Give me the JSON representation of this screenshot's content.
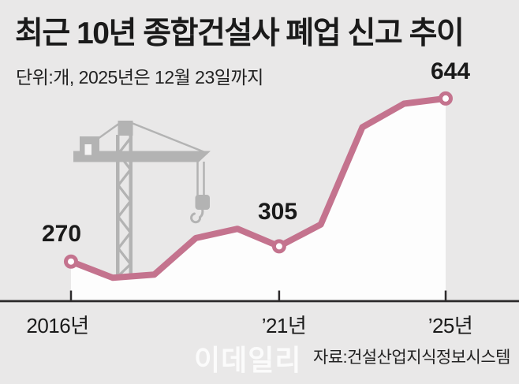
{
  "header": {
    "title": "최근 10년 종합건설사 폐업 신고 추이",
    "subtitle": "단위:개, 2025년은 12월 23일까지"
  },
  "footer": {
    "source": "자료:건설산업지식정보시스템",
    "watermark": "이데일리"
  },
  "colors": {
    "background": "#e9e8e8",
    "area_fill": "#fdfdfd",
    "line": "#c4738e",
    "marker_fill": "#ffffff",
    "crane": "#b3b3b3",
    "axis": "#2d2b2c",
    "text": "#1a1a1a"
  },
  "chart_data": {
    "type": "line",
    "title": "최근 10년 종합건설사 폐업 신고 추이",
    "unit_note": "단위:개, 2025년은 12월 23일까지",
    "x": [
      2016,
      2017,
      2018,
      2019,
      2020,
      2021,
      2022,
      2023,
      2024,
      2025
    ],
    "values": [
      270,
      233,
      240,
      324,
      345,
      305,
      355,
      578,
      632,
      644
    ],
    "annotated_points": [
      {
        "year": 2016,
        "value": 270,
        "label": "270"
      },
      {
        "year": 2021,
        "value": 305,
        "label": "305"
      },
      {
        "year": 2025,
        "value": 644,
        "label": "644"
      }
    ],
    "x_ticks": [
      {
        "year": 2016,
        "label": "2016년"
      },
      {
        "year": 2021,
        "label": "’21년"
      },
      {
        "year": 2025,
        "label": "’25년"
      }
    ],
    "ylim": [
      180,
      660
    ],
    "grid": false,
    "legend": false,
    "area_filled": true,
    "source": "자료:건설산업지식정보시스템"
  }
}
